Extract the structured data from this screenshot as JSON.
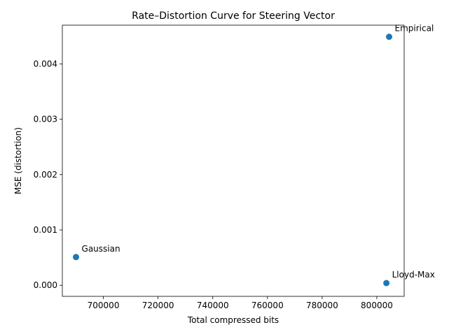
{
  "chart_data": {
    "type": "scatter",
    "title": "Rate–Distortion Curve for Steering Vector",
    "xlabel": "Total compressed bits",
    "ylabel": "MSE (distortion)",
    "xlim": [
      685000,
      810000
    ],
    "ylim": [
      -0.0002,
      0.0047
    ],
    "xticks": [
      700000,
      720000,
      740000,
      760000,
      780000,
      800000
    ],
    "xtick_labels": [
      "700000",
      "720000",
      "740000",
      "760000",
      "780000",
      "800000"
    ],
    "yticks": [
      0.0,
      0.001,
      0.002,
      0.003,
      0.004
    ],
    "ytick_labels": [
      "0.000",
      "0.001",
      "0.002",
      "0.003",
      "0.004"
    ],
    "grid": false,
    "color": "#1f77b4",
    "points": [
      {
        "label": "Gaussian",
        "x": 690000,
        "y": 0.00051
      },
      {
        "label": "Empirical",
        "x": 804500,
        "y": 0.00449
      },
      {
        "label": "Lloyd-Max",
        "x": 803500,
        "y": 4e-05
      }
    ]
  }
}
